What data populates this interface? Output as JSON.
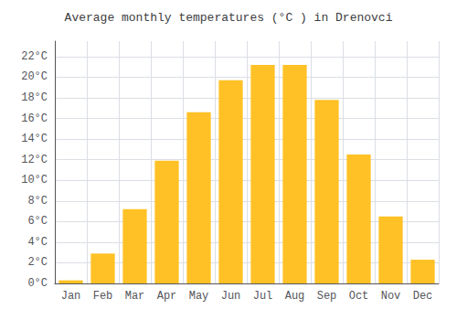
{
  "chart_data": {
    "type": "bar",
    "title": "Average monthly temperatures (°C ) in Drenovci",
    "categories": [
      "Jan",
      "Feb",
      "Mar",
      "Apr",
      "May",
      "Jun",
      "Jul",
      "Aug",
      "Sep",
      "Oct",
      "Nov",
      "Dec"
    ],
    "values": [
      0.3,
      2.9,
      7.2,
      11.9,
      16.6,
      19.7,
      21.2,
      21.2,
      17.8,
      12.5,
      6.5,
      2.3
    ],
    "color": "#FFC125",
    "ylim": [
      0,
      23.5
    ],
    "yticks": [
      {
        "value": 0,
        "label": "0°C"
      },
      {
        "value": 2,
        "label": "2°C"
      },
      {
        "value": 4,
        "label": "4°C"
      },
      {
        "value": 6,
        "label": "6°C"
      },
      {
        "value": 8,
        "label": "8°C"
      },
      {
        "value": 10,
        "label": "10°C"
      },
      {
        "value": 12,
        "label": "12°C"
      },
      {
        "value": 14,
        "label": "14°C"
      },
      {
        "value": 16,
        "label": "16°C"
      },
      {
        "value": 18,
        "label": "18°C"
      },
      {
        "value": 20,
        "label": "20°C"
      },
      {
        "value": 22,
        "label": "22°C"
      }
    ],
    "grid": true
  }
}
